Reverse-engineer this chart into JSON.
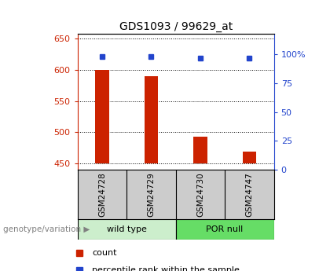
{
  "title": "GDS1093 / 99629_at",
  "samples": [
    "GSM24728",
    "GSM24729",
    "GSM24730",
    "GSM24747"
  ],
  "bar_values": [
    600,
    590,
    493,
    468
  ],
  "blue_values": [
    98,
    98,
    97,
    97
  ],
  "baseline": 450,
  "ylim_left": [
    440,
    658
  ],
  "yticks_left": [
    450,
    500,
    550,
    600,
    650
  ],
  "ylim_right": [
    0,
    118
  ],
  "yticks_right": [
    0,
    25,
    50,
    75,
    100
  ],
  "yticklabels_right": [
    "0",
    "25",
    "50",
    "75",
    "100%"
  ],
  "bar_color": "#cc2200",
  "blue_color": "#2244cc",
  "groups": [
    {
      "label": "wild type",
      "samples": [
        0,
        1
      ],
      "color": "#cceecc"
    },
    {
      "label": "POR null",
      "samples": [
        2,
        3
      ],
      "color": "#66dd66"
    }
  ],
  "group_label_prefix": "genotype/variation",
  "legend_count_label": "count",
  "legend_pct_label": "percentile rank within the sample",
  "background_color": "#ffffff",
  "plot_bg": "#ffffff",
  "label_area_color": "#cccccc"
}
